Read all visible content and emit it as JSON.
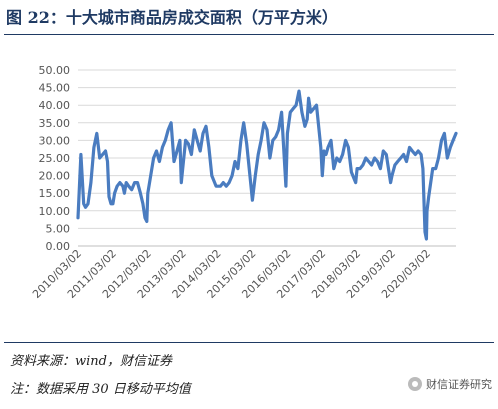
{
  "figure": {
    "title": "图 22：十大城市商品房成交面积（万平方米）",
    "source": "资料来源：wind，财信证券",
    "note": "注：数据采用 30 日移动平均值",
    "watermark": "财信证券研究",
    "watermark_icon": "wechat-icon"
  },
  "chart_data": {
    "type": "line",
    "title": "十大城市商品房成交面积（万平方米）",
    "xlabel": "",
    "ylabel": "",
    "ylim": [
      0,
      50
    ],
    "yticks": [
      "0.00",
      "5.00",
      "10.00",
      "15.00",
      "20.00",
      "25.00",
      "30.00",
      "35.00",
      "40.00",
      "45.00",
      "50.00"
    ],
    "xticks": [
      "2010/03/02",
      "2011/03/02",
      "2012/03/02",
      "2013/03/02",
      "2014/03/02",
      "2015/03/02",
      "2016/03/02",
      "2017/03/02",
      "2018/03/02",
      "2019/03/02",
      "2020/03/02"
    ],
    "xlim": [
      "2010/03/02",
      "2020/12/31"
    ],
    "grid": "horizontal",
    "legend": "none",
    "line_color": "#4a7cc0",
    "series": [
      {
        "x": [
          "2010/03/02",
          "2010/04/01",
          "2010/05/01",
          "2010/05/20",
          "2010/06/15",
          "2010/07/15",
          "2010/08/15",
          "2010/09/15",
          "2010/10/15",
          "2010/11/15",
          "2010/12/15",
          "2011/01/05",
          "2011/01/20",
          "2011/02/10",
          "2011/03/02",
          "2011/03/20",
          "2011/04/15",
          "2011/05/15",
          "2011/06/15",
          "2011/07/01",
          "2011/07/20",
          "2011/08/15",
          "2011/09/15",
          "2011/10/15",
          "2011/11/15",
          "2011/12/15",
          "2012/01/10",
          "2012/02/01",
          "2012/02/20",
          "2012/03/02",
          "2012/04/01",
          "2012/05/01",
          "2012/06/01",
          "2012/07/01",
          "2012/08/01",
          "2012/09/01",
          "2012/10/01",
          "2012/11/01",
          "2012/12/01",
          "2013/01/01",
          "2013/02/01",
          "2013/02/15",
          "2013/03/02",
          "2013/04/01",
          "2013/05/01",
          "2013/06/01",
          "2013/07/01",
          "2013/08/01",
          "2013/09/01",
          "2013/10/01",
          "2013/11/01",
          "2013/12/01",
          "2014/01/01",
          "2014/02/15",
          "2014/03/02",
          "2014/04/01",
          "2014/05/01",
          "2014/06/01",
          "2014/07/01",
          "2014/08/01",
          "2014/09/01",
          "2014/10/01",
          "2014/11/01",
          "2014/12/01",
          "2015/01/01",
          "2015/02/15",
          "2015/03/02",
          "2015/04/01",
          "2015/05/01",
          "2015/06/01",
          "2015/07/01",
          "2015/08/01",
          "2015/09/01",
          "2015/10/01",
          "2015/11/01",
          "2015/12/01",
          "2016/01/01",
          "2016/02/15",
          "2016/03/02",
          "2016/04/01",
          "2016/05/01",
          "2016/06/01",
          "2016/07/01",
          "2016/08/01",
          "2016/09/01",
          "2016/09/25",
          "2016/10/10",
          "2016/11/01",
          "2016/12/01",
          "2017/01/01",
          "2017/02/15",
          "2017/03/02",
          "2017/03/20",
          "2017/04/10",
          "2017/05/01",
          "2017/06/01",
          "2017/07/01",
          "2017/08/01",
          "2017/09/01",
          "2017/10/01",
          "2017/11/01",
          "2017/12/01",
          "2018/01/01",
          "2018/02/15",
          "2018/03/02",
          "2018/04/01",
          "2018/05/01",
          "2018/06/01",
          "2018/07/01",
          "2018/08/01",
          "2018/09/01",
          "2018/10/01",
          "2018/11/01",
          "2018/12/01",
          "2019/01/01",
          "2019/02/15",
          "2019/03/02",
          "2019/04/01",
          "2019/05/01",
          "2019/06/01",
          "2019/07/01",
          "2019/08/01",
          "2019/09/01",
          "2019/10/01",
          "2019/11/01",
          "2019/12/01",
          "2020/01/01",
          "2020/01/20",
          "2020/02/10",
          "2020/02/25",
          "2020/03/02",
          "2020/03/20",
          "2020/04/10",
          "2020/05/01",
          "2020/06/01",
          "2020/07/01",
          "2020/08/01",
          "2020/09/01",
          "2020/10/01",
          "2020/11/01",
          "2020/12/01",
          "2020/12/31"
        ],
        "values": [
          8,
          26,
          12,
          11,
          12,
          18,
          28,
          32,
          25,
          26,
          27,
          24,
          14,
          12,
          12,
          15,
          17,
          18,
          17,
          15,
          18,
          17,
          16,
          18,
          18,
          15,
          12,
          8,
          7,
          15,
          20,
          25,
          27,
          24,
          28,
          30,
          33,
          35,
          24,
          27,
          30,
          18,
          22,
          30,
          29,
          26,
          33,
          30,
          27,
          32,
          34,
          28,
          20,
          17,
          17,
          17,
          18,
          17,
          18,
          20,
          24,
          22,
          30,
          35,
          29,
          17,
          13,
          20,
          26,
          30,
          35,
          33,
          25,
          30,
          31,
          33,
          38,
          17,
          32,
          38,
          39,
          40,
          44,
          38,
          34,
          36,
          42,
          38,
          39,
          40,
          28,
          20,
          27,
          26,
          28,
          30,
          22,
          25,
          24,
          26,
          30,
          28,
          21,
          18,
          22,
          22,
          23,
          25,
          24,
          23,
          25,
          24,
          22,
          27,
          26,
          18,
          20,
          23,
          24,
          25,
          26,
          24,
          28,
          27,
          26,
          27,
          26,
          22,
          4,
          2,
          10,
          14,
          18,
          22,
          22,
          25,
          30,
          32,
          25,
          28,
          30,
          32
        ]
      }
    ]
  }
}
